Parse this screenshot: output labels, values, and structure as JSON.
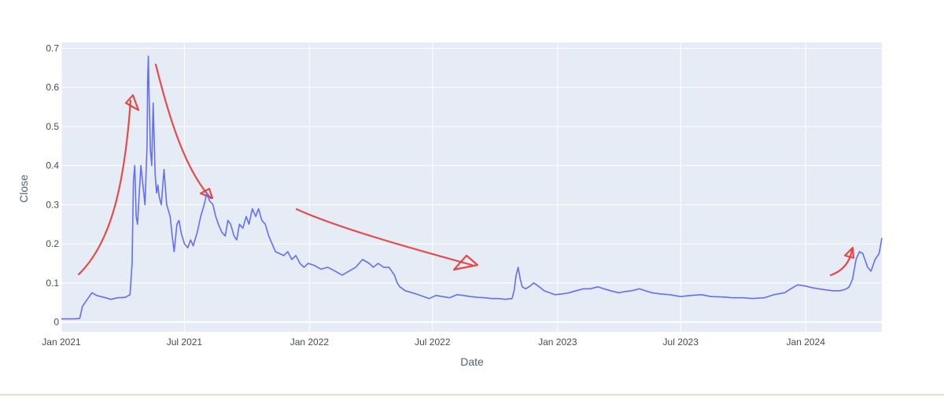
{
  "chart_data": {
    "type": "line",
    "title": "",
    "xlabel": "Date",
    "ylabel": "Close",
    "x_range": [
      "2021-01-01",
      "2024-04-22"
    ],
    "ylim": [
      -0.025,
      0.715
    ],
    "grid": true,
    "legend": "none",
    "colors": {
      "plot_background": "#e5ecf6",
      "grid": "#ffffff",
      "line": "#636efa",
      "annotation": "#e53935"
    },
    "x_ticks": [
      {
        "label": "Jan 2021",
        "date": "2021-01-01"
      },
      {
        "label": "Jul 2021",
        "date": "2021-07-01"
      },
      {
        "label": "Jan 2022",
        "date": "2022-01-01"
      },
      {
        "label": "Jul 2022",
        "date": "2022-07-01"
      },
      {
        "label": "Jan 2023",
        "date": "2023-01-01"
      },
      {
        "label": "Jul 2023",
        "date": "2023-07-01"
      },
      {
        "label": "Jan 2024",
        "date": "2024-01-01"
      }
    ],
    "y_ticks": [
      {
        "label": "0",
        "value": 0
      },
      {
        "label": "0.1",
        "value": 0.1
      },
      {
        "label": "0.2",
        "value": 0.2
      },
      {
        "label": "0.3",
        "value": 0.3
      },
      {
        "label": "0.4",
        "value": 0.4
      },
      {
        "label": "0.5",
        "value": 0.5
      },
      {
        "label": "0.6",
        "value": 0.6
      },
      {
        "label": "0.7",
        "value": 0.7
      }
    ],
    "series": [
      {
        "x": [
          "2021-01-01",
          "2021-01-20",
          "2021-01-28",
          "2021-02-01",
          "2021-02-05",
          "2021-02-09",
          "2021-02-15",
          "2021-02-22",
          "2021-03-05",
          "2021-03-15",
          "2021-03-25",
          "2021-04-05",
          "2021-04-12",
          "2021-04-15",
          "2021-04-17",
          "2021-04-19",
          "2021-04-21",
          "2021-04-23",
          "2021-04-25",
          "2021-04-28",
          "2021-05-01",
          "2021-05-04",
          "2021-05-07",
          "2021-05-08",
          "2021-05-09",
          "2021-05-10",
          "2021-05-12",
          "2021-05-14",
          "2021-05-16",
          "2021-05-19",
          "2021-05-21",
          "2021-05-23",
          "2021-05-25",
          "2021-05-28",
          "2021-06-01",
          "2021-06-05",
          "2021-06-10",
          "2021-06-13",
          "2021-06-16",
          "2021-06-20",
          "2021-06-23",
          "2021-06-26",
          "2021-07-01",
          "2021-07-06",
          "2021-07-10",
          "2021-07-14",
          "2021-07-20",
          "2021-07-25",
          "2021-07-30",
          "2021-08-03",
          "2021-08-07",
          "2021-08-12",
          "2021-08-16",
          "2021-08-20",
          "2021-08-25",
          "2021-08-30",
          "2021-09-03",
          "2021-09-07",
          "2021-09-12",
          "2021-09-16",
          "2021-09-20",
          "2021-09-25",
          "2021-09-30",
          "2021-10-04",
          "2021-10-09",
          "2021-10-14",
          "2021-10-18",
          "2021-10-23",
          "2021-10-28",
          "2021-11-02",
          "2021-11-07",
          "2021-11-12",
          "2021-11-18",
          "2021-11-24",
          "2021-11-30",
          "2021-12-06",
          "2021-12-12",
          "2021-12-18",
          "2021-12-24",
          "2021-12-30",
          "2022-01-08",
          "2022-01-18",
          "2022-01-28",
          "2022-02-08",
          "2022-02-18",
          "2022-02-28",
          "2022-03-10",
          "2022-03-20",
          "2022-03-30",
          "2022-04-05",
          "2022-04-12",
          "2022-04-20",
          "2022-04-28",
          "2022-05-06",
          "2022-05-10",
          "2022-05-14",
          "2022-05-22",
          "2022-06-01",
          "2022-06-10",
          "2022-06-18",
          "2022-06-26",
          "2022-07-06",
          "2022-07-16",
          "2022-07-26",
          "2022-08-06",
          "2022-08-16",
          "2022-08-26",
          "2022-09-06",
          "2022-09-16",
          "2022-09-26",
          "2022-10-06",
          "2022-10-16",
          "2022-10-26",
          "2022-10-29",
          "2022-11-01",
          "2022-11-04",
          "2022-11-07",
          "2022-11-10",
          "2022-11-15",
          "2022-11-20",
          "2022-11-27",
          "2022-12-05",
          "2022-12-12",
          "2022-12-20",
          "2022-12-28",
          "2023-01-08",
          "2023-01-18",
          "2023-01-28",
          "2023-02-08",
          "2023-02-18",
          "2023-03-01",
          "2023-03-10",
          "2023-03-20",
          "2023-04-01",
          "2023-04-10",
          "2023-04-20",
          "2023-05-01",
          "2023-05-10",
          "2023-05-20",
          "2023-06-01",
          "2023-06-15",
          "2023-07-01",
          "2023-07-15",
          "2023-08-01",
          "2023-08-15",
          "2023-09-01",
          "2023-09-15",
          "2023-10-01",
          "2023-10-15",
          "2023-11-01",
          "2023-11-15",
          "2023-12-01",
          "2023-12-10",
          "2023-12-20",
          "2024-01-01",
          "2024-01-10",
          "2024-01-20",
          "2024-02-01",
          "2024-02-10",
          "2024-02-20",
          "2024-02-25",
          "2024-03-01",
          "2024-03-05",
          "2024-03-10",
          "2024-03-15",
          "2024-03-20",
          "2024-03-25",
          "2024-04-01",
          "2024-04-06",
          "2024-04-12",
          "2024-04-18",
          "2024-04-22"
        ],
        "y": [
          0.008,
          0.008,
          0.009,
          0.04,
          0.05,
          0.06,
          0.075,
          0.068,
          0.063,
          0.058,
          0.062,
          0.063,
          0.07,
          0.15,
          0.36,
          0.4,
          0.27,
          0.25,
          0.31,
          0.4,
          0.35,
          0.3,
          0.45,
          0.62,
          0.68,
          0.58,
          0.44,
          0.4,
          0.56,
          0.38,
          0.33,
          0.35,
          0.32,
          0.3,
          0.39,
          0.3,
          0.27,
          0.22,
          0.18,
          0.25,
          0.26,
          0.23,
          0.2,
          0.19,
          0.21,
          0.195,
          0.23,
          0.27,
          0.3,
          0.33,
          0.31,
          0.3,
          0.27,
          0.25,
          0.23,
          0.22,
          0.26,
          0.25,
          0.22,
          0.21,
          0.25,
          0.24,
          0.27,
          0.25,
          0.29,
          0.27,
          0.29,
          0.26,
          0.25,
          0.22,
          0.2,
          0.18,
          0.175,
          0.17,
          0.18,
          0.16,
          0.17,
          0.15,
          0.14,
          0.15,
          0.145,
          0.135,
          0.14,
          0.13,
          0.12,
          0.13,
          0.14,
          0.16,
          0.15,
          0.14,
          0.15,
          0.14,
          0.14,
          0.12,
          0.1,
          0.09,
          0.08,
          0.075,
          0.07,
          0.065,
          0.06,
          0.068,
          0.065,
          0.062,
          0.07,
          0.068,
          0.065,
          0.063,
          0.062,
          0.06,
          0.06,
          0.058,
          0.06,
          0.08,
          0.12,
          0.14,
          0.11,
          0.09,
          0.085,
          0.09,
          0.1,
          0.09,
          0.08,
          0.075,
          0.07,
          0.072,
          0.075,
          0.08,
          0.085,
          0.085,
          0.09,
          0.085,
          0.08,
          0.075,
          0.078,
          0.08,
          0.085,
          0.08,
          0.075,
          0.072,
          0.07,
          0.065,
          0.068,
          0.07,
          0.065,
          0.064,
          0.062,
          0.062,
          0.06,
          0.062,
          0.07,
          0.075,
          0.085,
          0.095,
          0.092,
          0.088,
          0.085,
          0.082,
          0.08,
          0.08,
          0.082,
          0.085,
          0.09,
          0.11,
          0.16,
          0.18,
          0.175,
          0.14,
          0.13,
          0.16,
          0.175,
          0.215
        ]
      }
    ]
  }
}
